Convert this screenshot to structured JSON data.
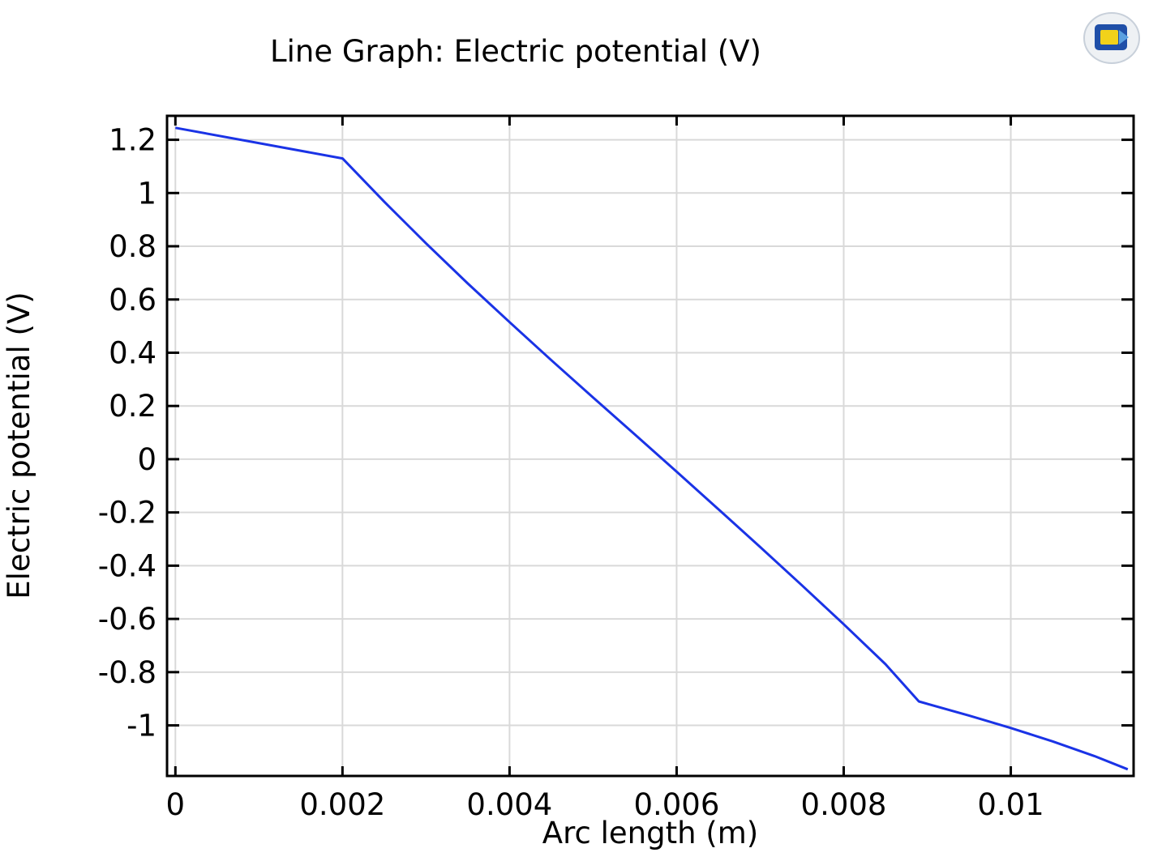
{
  "chart_data": {
    "type": "line",
    "title": "Line Graph: Electric potential (V)",
    "xlabel": "Arc length (m)",
    "ylabel": "Electric potential (V)",
    "xlim": [
      -0.0001,
      0.01147
    ],
    "ylim": [
      -1.19,
      1.29
    ],
    "xticks": [
      0,
      0.002,
      0.004,
      0.006,
      0.008,
      0.01
    ],
    "xtick_labels": [
      "0",
      "0.002",
      "0.004",
      "0.006",
      "0.008",
      "0.01"
    ],
    "yticks": [
      1.2,
      1,
      0.8,
      0.6,
      0.4,
      0.2,
      0,
      -0.2,
      -0.4,
      -0.6,
      -0.8,
      -1
    ],
    "ytick_labels": [
      "1.2",
      "1",
      "0.8",
      "0.6",
      "0.4",
      "0.2",
      "0",
      "-0.2",
      "-0.4",
      "-0.6",
      "-0.8",
      "-1"
    ],
    "grid": true,
    "series": [
      {
        "color": "#1a33e6",
        "x": [
          0,
          0.002,
          0.0025,
          0.003,
          0.0035,
          0.004,
          0.0045,
          0.005,
          0.0055,
          0.006,
          0.0065,
          0.007,
          0.0075,
          0.008,
          0.0085,
          0.0089,
          0.0095,
          0.01,
          0.0105,
          0.011,
          0.0114
        ],
        "y": [
          1.245,
          1.13,
          0.967,
          0.811,
          0.66,
          0.515,
          0.372,
          0.232,
          0.093,
          -0.047,
          -0.188,
          -0.33,
          -0.474,
          -0.62,
          -0.77,
          -0.91,
          -0.963,
          -1.01,
          -1.06,
          -1.115,
          -1.165
        ]
      }
    ]
  },
  "logo": {
    "name": "comsol-logo-icon",
    "colors": [
      "#1f4fa8",
      "#f2d21a",
      "#9fb4cc"
    ]
  }
}
